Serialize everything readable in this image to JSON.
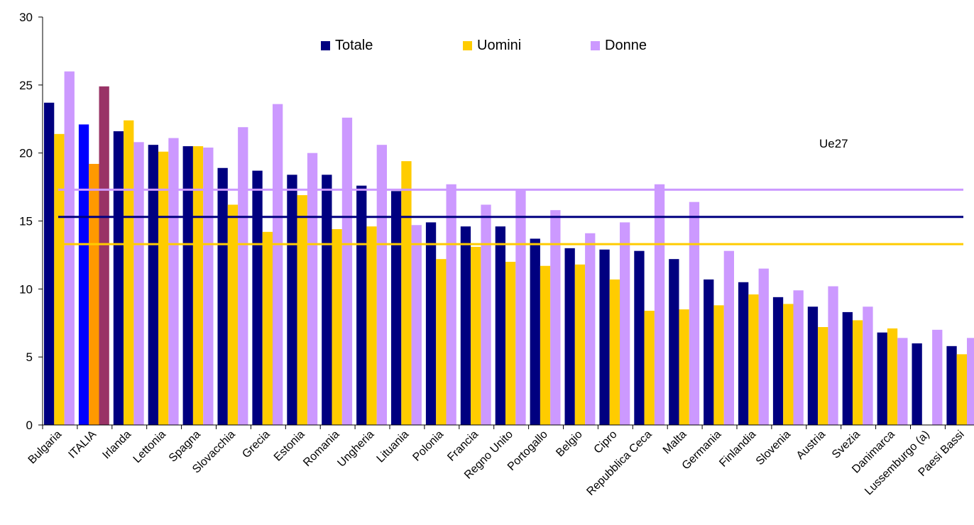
{
  "chart_data": {
    "type": "bar",
    "title": "",
    "xlabel": "",
    "ylabel": "",
    "ylim": [
      0,
      30
    ],
    "yticks": [
      0,
      5,
      10,
      15,
      20,
      25,
      30
    ],
    "grid": false,
    "legend_position": "top-center",
    "categories": [
      "Bulgaria",
      "ITALIA",
      "Irlanda",
      "Lettonia",
      "Spagna",
      "Slovacchia",
      "Grecia",
      "Estonia",
      "Romania",
      "Ungheria",
      "Lituania",
      "Polonia",
      "Francia",
      "Regno Unito",
      "Portogallo",
      "Belgio",
      "Cipro",
      "Repubblica Ceca",
      "Malta",
      "Germania",
      "Finlandia",
      "Slovenia",
      "Austria",
      "Svezia",
      "Danimarca",
      "Lussemburgo (a)",
      "Paesi Bassi"
    ],
    "series": [
      {
        "name": "Totale",
        "color": "#000080",
        "values": [
          23.7,
          22.1,
          21.6,
          20.6,
          20.5,
          18.9,
          18.7,
          18.4,
          18.4,
          17.6,
          17.2,
          14.9,
          14.6,
          14.6,
          13.7,
          13.0,
          12.9,
          12.8,
          12.2,
          10.7,
          10.5,
          9.4,
          8.7,
          8.3,
          6.8,
          6.0,
          5.8
        ]
      },
      {
        "name": "Uomini",
        "color": "#ffcc00",
        "values": [
          21.4,
          19.2,
          22.4,
          20.1,
          20.5,
          16.2,
          14.2,
          16.9,
          14.4,
          14.6,
          19.4,
          12.2,
          13.1,
          12.0,
          11.7,
          11.8,
          10.7,
          8.4,
          8.5,
          8.8,
          9.6,
          8.9,
          7.2,
          7.7,
          7.1,
          null,
          5.2
        ]
      },
      {
        "name": "Donne",
        "color": "#cc99ff",
        "values": [
          26.0,
          24.9,
          20.8,
          21.1,
          20.4,
          21.9,
          23.6,
          20.0,
          22.6,
          20.6,
          14.7,
          17.7,
          16.2,
          17.3,
          15.8,
          14.1,
          14.9,
          17.7,
          16.4,
          12.8,
          11.5,
          9.9,
          10.2,
          8.7,
          6.4,
          7.0,
          6.4
        ]
      }
    ],
    "highlight": {
      "category": "ITALIA",
      "colors": [
        "#0000ff",
        "#ff9900",
        "#993366"
      ]
    },
    "reference_lines": [
      {
        "series": "Totale",
        "value": 15.3,
        "color": "#000080"
      },
      {
        "series": "Uomini",
        "value": 13.3,
        "color": "#ffcc00"
      },
      {
        "series": "Donne",
        "value": 17.3,
        "color": "#cc99ff"
      }
    ],
    "annotations": [
      "Ue27"
    ]
  }
}
